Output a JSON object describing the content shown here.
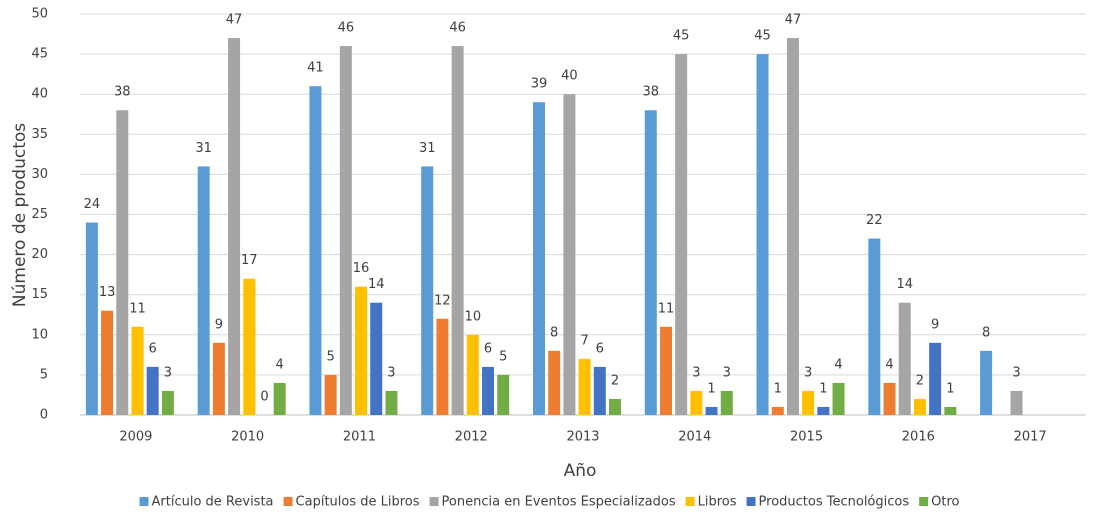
{
  "chart_data": {
    "type": "bar",
    "x_label": "Año",
    "y_label": "Número de productos",
    "categories": [
      "2009",
      "2010",
      "2011",
      "2012",
      "2013",
      "2014",
      "2015",
      "2016",
      "2017"
    ],
    "series": [
      {
        "name": "Artículo de Revista",
        "color": "#5b9bd5",
        "values": [
          24,
          31,
          41,
          31,
          39,
          38,
          45,
          22,
          8
        ]
      },
      {
        "name": "Capítulos de Libros",
        "color": "#ed7d31",
        "values": [
          13,
          9,
          5,
          12,
          8,
          11,
          1,
          4,
          null
        ]
      },
      {
        "name": "Ponencia en Eventos Especializados",
        "color": "#a5a5a5",
        "values": [
          38,
          47,
          46,
          46,
          40,
          45,
          47,
          14,
          3
        ]
      },
      {
        "name": "Libros",
        "color": "#ffc000",
        "values": [
          11,
          17,
          16,
          10,
          7,
          3,
          3,
          2,
          null
        ]
      },
      {
        "name": "Productos Tecnológicos",
        "color": "#4472c4",
        "values": [
          6,
          0,
          14,
          6,
          6,
          1,
          1,
          9,
          null
        ]
      },
      {
        "name": "Otro",
        "color": "#70ad47",
        "values": [
          3,
          4,
          3,
          5,
          2,
          3,
          4,
          1,
          null
        ]
      }
    ],
    "ylim": [
      0,
      50
    ],
    "yticks": [
      0,
      5,
      10,
      15,
      20,
      25,
      30,
      35,
      40,
      45,
      50
    ],
    "grid": true,
    "legend": "bottom"
  }
}
